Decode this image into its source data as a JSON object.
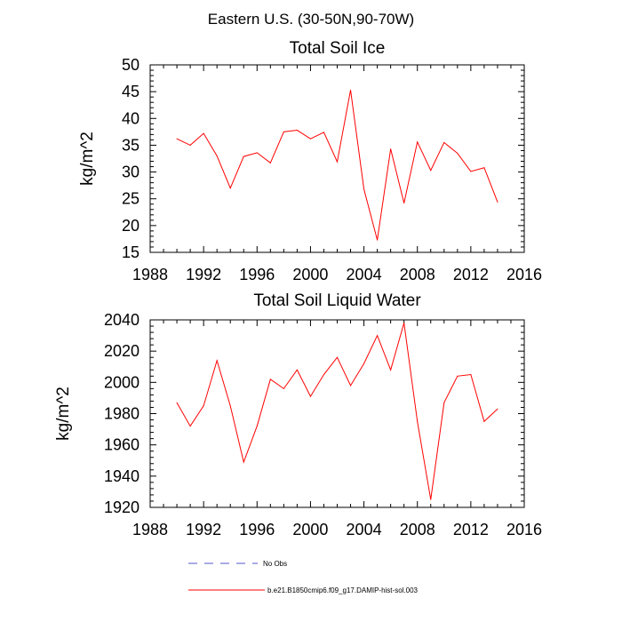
{
  "figure": {
    "title": "Eastern U.S. (30-50N,90-70W)"
  },
  "chart_data": [
    {
      "type": "line",
      "title": "Total Soil Ice",
      "xlabel": "",
      "ylabel": "kg/m^2",
      "xlim": [
        1988,
        2016
      ],
      "ylim": [
        15,
        50
      ],
      "xticks": [
        1988,
        1992,
        1996,
        2000,
        2004,
        2008,
        2012,
        2016
      ],
      "yticks": [
        15,
        20,
        25,
        30,
        35,
        40,
        45,
        50
      ],
      "grid": false,
      "series": [
        {
          "name": "b.e21.B1850cmip6.f09_g17.DAMIP-hist-sol.003",
          "color": "#ff0000",
          "x": [
            1990,
            1991,
            1992,
            1993,
            1994,
            1995,
            1996,
            1997,
            1998,
            1999,
            2000,
            2001,
            2002,
            2003,
            2004,
            2005,
            2006,
            2007,
            2008,
            2009,
            2010,
            2011,
            2012,
            2013,
            2014
          ],
          "y": [
            36.2,
            35.0,
            37.2,
            33.0,
            27.0,
            32.9,
            33.6,
            31.7,
            37.5,
            37.8,
            36.2,
            37.4,
            31.9,
            45.3,
            26.8,
            17.3,
            34.3,
            24.2,
            35.6,
            30.3,
            35.5,
            33.5,
            30.1,
            30.8,
            24.4
          ]
        }
      ]
    },
    {
      "type": "line",
      "title": "Total Soil Liquid Water",
      "xlabel": "",
      "ylabel": "kg/m^2",
      "xlim": [
        1988,
        2016
      ],
      "ylim": [
        1920,
        2040
      ],
      "xticks": [
        1988,
        1992,
        1996,
        2000,
        2004,
        2008,
        2012,
        2016
      ],
      "yticks": [
        1920,
        1940,
        1960,
        1980,
        2000,
        2020,
        2040
      ],
      "grid": false,
      "series": [
        {
          "name": "b.e21.B1850cmip6.f09_g17.DAMIP-hist-sol.003",
          "color": "#ff0000",
          "x": [
            1990,
            1991,
            1992,
            1993,
            1994,
            1995,
            1996,
            1997,
            1998,
            1999,
            2000,
            2001,
            2002,
            2003,
            2004,
            2005,
            2006,
            2007,
            2008,
            2009,
            2010,
            2011,
            2012,
            2013,
            2014
          ],
          "y": [
            1987,
            1972,
            1985,
            2014,
            1985,
            1949,
            1972,
            2002,
            1996,
            2008,
            1991,
            2005,
            2016,
            1998,
            2012,
            2030,
            2008,
            2038,
            1975,
            1925,
            1987,
            2004,
            2005,
            1975,
            1983
          ]
        }
      ]
    }
  ],
  "legend": {
    "placement": "bottom-center",
    "items": [
      {
        "label": "No Obs",
        "color": "#5555cc",
        "style": "dashed"
      },
      {
        "label": "b.e21.B1850cmip6.f09_g17.DAMIP-hist-sol.003",
        "color": "#ff0000",
        "style": "solid"
      }
    ]
  }
}
